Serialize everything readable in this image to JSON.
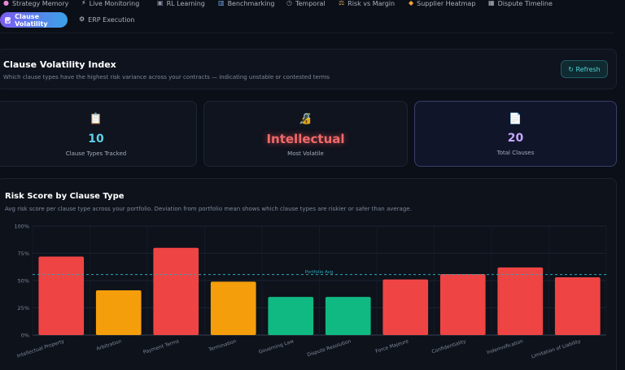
{
  "tabs": [
    {
      "label": "Strategy Memory",
      "icon": "brain-icon",
      "glyph": "🧠"
    },
    {
      "label": "Live Monitoring",
      "icon": "pulse-icon",
      "glyph": "⚡"
    },
    {
      "label": "RL Learning",
      "icon": "chip-icon",
      "glyph": "▣"
    },
    {
      "label": "Benchmarking",
      "icon": "bar-chart-icon",
      "glyph": "▥"
    },
    {
      "label": "Temporal",
      "icon": "clock-icon",
      "glyph": "◷"
    },
    {
      "label": "Risk vs Margin",
      "icon": "scales-icon",
      "glyph": "⚖"
    },
    {
      "label": "Supplier Heatmap",
      "icon": "flame-icon",
      "glyph": "◆"
    },
    {
      "label": "Dispute Timeline",
      "icon": "calendar-icon",
      "glyph": "▦"
    }
  ],
  "active_tab": {
    "label": "Clause Volatility",
    "icon": "check-square-icon"
  },
  "secondary_tab": {
    "label": "ERP Execution",
    "icon": "gear-icon",
    "glyph": "⚙"
  },
  "header": {
    "title": "Clause Volatility Index",
    "subtitle": "Which clause types have the highest risk variance across your contracts — indicating unstable or contested terms",
    "refresh_label": "↻ Refresh"
  },
  "stats": [
    {
      "icon": "clipboard-icon",
      "glyph": "📋",
      "value": "10",
      "label": "Clause Types Tracked",
      "color": "#5fd0e6"
    },
    {
      "icon": "lock-icon",
      "glyph": "🔏",
      "value": "Intellectual",
      "label": "Most Volatile",
      "color": "#f06a6a"
    },
    {
      "icon": "document-icon",
      "glyph": "📄",
      "value": "20",
      "label": "Total Clauses",
      "color": "#c7a6ff"
    }
  ],
  "chart": {
    "title": "Risk Score by Clause Type",
    "subtitle": "Avg risk score per clause type across your portfolio. Deviation from portfolio mean shows which clause types are riskier or safer than average."
  },
  "chart_data": {
    "type": "bar",
    "categories": [
      "Intellectual Property",
      "Arbitration",
      "Payment Terms",
      "Termination",
      "Governing Law",
      "Dispute Resolution",
      "Force Majeure",
      "Confidentiality",
      "Indemnification",
      "Limitation of Liability"
    ],
    "values": [
      72,
      41,
      80,
      49,
      35,
      35,
      51,
      56,
      62,
      53
    ],
    "colors": [
      "#ef4444",
      "#f59e0b",
      "#ef4444",
      "#f59e0b",
      "#10b981",
      "#10b981",
      "#ef4444",
      "#ef4444",
      "#ef4444",
      "#ef4444"
    ],
    "ylim": [
      0,
      100
    ],
    "yticks": [
      "0%",
      "25%",
      "50%",
      "75%",
      "100%"
    ],
    "reference_line": {
      "label": "Portfolio Avg",
      "value": 54,
      "color": "#2ca6b8"
    },
    "grid": true
  }
}
